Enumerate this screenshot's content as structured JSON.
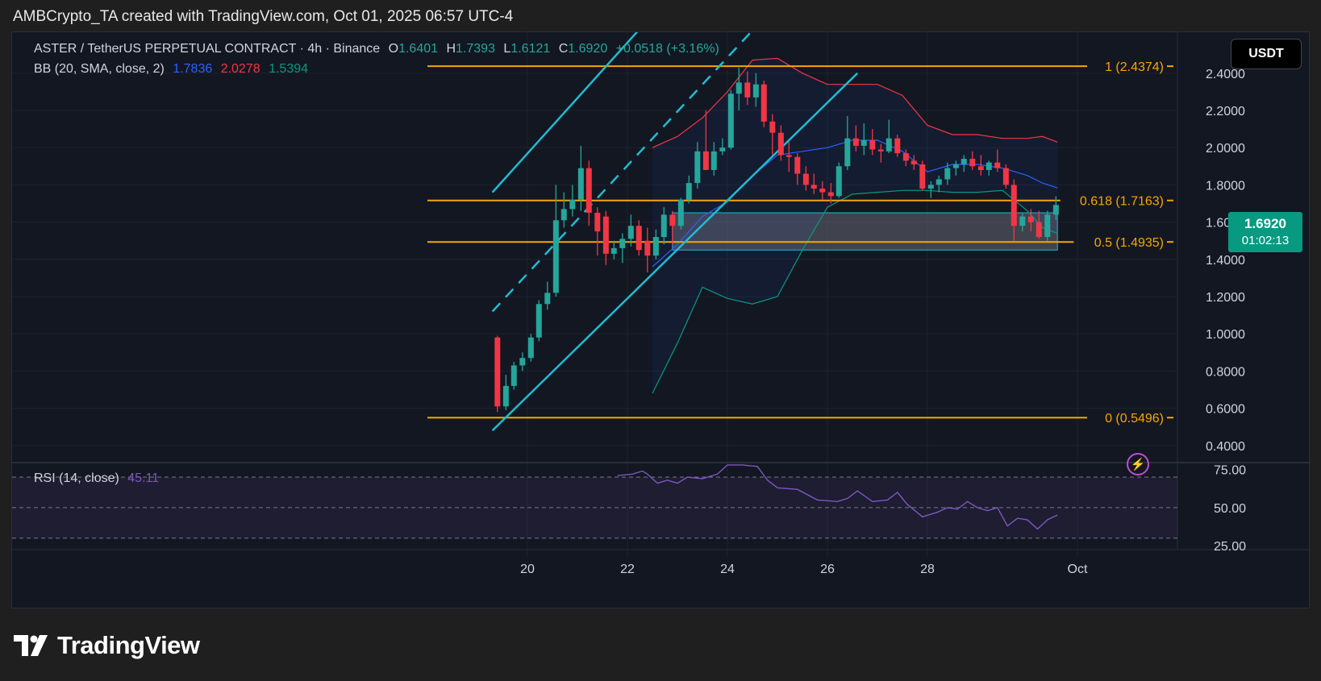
{
  "header": {
    "text": "AMBCrypto_TA created with TradingView.com, Oct 01, 2025 06:57 UTC-4"
  },
  "legend": {
    "symbol": "ASTER / TetherUS PERPETUAL CONTRACT · 4h · Binance",
    "open_label": "O",
    "open": "1.6401",
    "high_label": "H",
    "high": "1.7393",
    "low_label": "L",
    "low": "1.6121",
    "close_label": "C",
    "close": "1.6920",
    "change": "+0.0518 (+3.16%)",
    "bb_label": "BB (20, SMA, close, 2)",
    "bb_basis": "1.7836",
    "bb_upper": "2.0278",
    "bb_lower": "1.5394"
  },
  "rsi_legend": {
    "label": "RSI (14, close)",
    "value": "45.11"
  },
  "currency_button": "USDT",
  "price_tag": {
    "price": "1.6920",
    "countdown": "01:02:13"
  },
  "logo_text": "TradingView",
  "colors": {
    "up": "#26a69a",
    "down": "#f23645",
    "fib": "#f7a600",
    "channel": "#1fbcd2",
    "bb_basis": "#2962ff",
    "bb_upper": "#f23645",
    "bb_lower": "#089981",
    "rsi": "#7e57c2"
  },
  "chart_data": [
    {
      "type": "candlestick",
      "title": "ASTER / TetherUS PERPETUAL CONTRACT",
      "interval": "4h",
      "x_tick_labels": [
        "20",
        "22",
        "24",
        "26",
        "28",
        "Oct"
      ],
      "x_tick_days": [
        20,
        22,
        24,
        26,
        28,
        31
      ],
      "y_tick_labels": [
        "2.4000",
        "2.2000",
        "2.0000",
        "1.8000",
        "1.6000",
        "1.4000",
        "1.2000",
        "1.0000",
        "0.8000",
        "0.6000",
        "0.4000"
      ],
      "y_ticks": [
        2.4,
        2.2,
        2.0,
        1.8,
        1.6,
        1.4,
        1.2,
        1.0,
        0.8,
        0.6,
        0.4
      ],
      "ylim": [
        0.36,
        2.62
      ],
      "fib_levels": [
        {
          "label": "1 (2.4374)",
          "value": 2.4374
        },
        {
          "label": "0.618 (1.7163)",
          "value": 1.7163
        },
        {
          "label": "0.5 (1.4935)",
          "value": 1.4935
        },
        {
          "label": "0 (0.5496)",
          "value": 0.5496
        }
      ],
      "candles": [
        {
          "d": 19.4,
          "o": 0.98,
          "h": 0.99,
          "l": 0.58,
          "c": 0.61
        },
        {
          "d": 19.57,
          "o": 0.61,
          "h": 0.78,
          "l": 0.59,
          "c": 0.72
        },
        {
          "d": 19.73,
          "o": 0.72,
          "h": 0.85,
          "l": 0.7,
          "c": 0.83
        },
        {
          "d": 19.9,
          "o": 0.83,
          "h": 0.9,
          "l": 0.8,
          "c": 0.87
        },
        {
          "d": 20.07,
          "o": 0.87,
          "h": 1.0,
          "l": 0.85,
          "c": 0.98
        },
        {
          "d": 20.23,
          "o": 0.98,
          "h": 1.18,
          "l": 0.96,
          "c": 1.16
        },
        {
          "d": 20.4,
          "o": 1.16,
          "h": 1.28,
          "l": 1.13,
          "c": 1.22
        },
        {
          "d": 20.57,
          "o": 1.22,
          "h": 1.8,
          "l": 1.2,
          "c": 1.61
        },
        {
          "d": 20.73,
          "o": 1.61,
          "h": 1.76,
          "l": 1.57,
          "c": 1.67
        },
        {
          "d": 20.9,
          "o": 1.67,
          "h": 1.8,
          "l": 1.63,
          "c": 1.72
        },
        {
          "d": 21.07,
          "o": 1.72,
          "h": 2.01,
          "l": 1.66,
          "c": 1.89
        },
        {
          "d": 21.23,
          "o": 1.89,
          "h": 1.93,
          "l": 1.58,
          "c": 1.65
        },
        {
          "d": 21.4,
          "o": 1.65,
          "h": 1.68,
          "l": 1.42,
          "c": 1.55
        },
        {
          "d": 21.57,
          "o": 1.63,
          "h": 1.66,
          "l": 1.37,
          "c": 1.43
        },
        {
          "d": 21.73,
          "o": 1.43,
          "h": 1.5,
          "l": 1.4,
          "c": 1.46
        },
        {
          "d": 21.9,
          "o": 1.46,
          "h": 1.54,
          "l": 1.38,
          "c": 1.51
        },
        {
          "d": 22.07,
          "o": 1.51,
          "h": 1.64,
          "l": 1.47,
          "c": 1.58
        },
        {
          "d": 22.23,
          "o": 1.58,
          "h": 1.61,
          "l": 1.42,
          "c": 1.45
        },
        {
          "d": 22.4,
          "o": 1.5,
          "h": 1.57,
          "l": 1.33,
          "c": 1.42
        },
        {
          "d": 22.57,
          "o": 1.42,
          "h": 1.56,
          "l": 1.4,
          "c": 1.52
        },
        {
          "d": 22.73,
          "o": 1.52,
          "h": 1.68,
          "l": 1.48,
          "c": 1.64
        },
        {
          "d": 22.9,
          "o": 1.64,
          "h": 1.66,
          "l": 1.48,
          "c": 1.58
        },
        {
          "d": 23.07,
          "o": 1.58,
          "h": 1.73,
          "l": 1.56,
          "c": 1.72
        },
        {
          "d": 23.23,
          "o": 1.72,
          "h": 1.85,
          "l": 1.7,
          "c": 1.81
        },
        {
          "d": 23.4,
          "o": 1.81,
          "h": 2.03,
          "l": 1.78,
          "c": 1.98
        },
        {
          "d": 23.57,
          "o": 1.98,
          "h": 2.2,
          "l": 1.88,
          "c": 1.88
        },
        {
          "d": 23.73,
          "o": 1.88,
          "h": 2.03,
          "l": 1.85,
          "c": 1.98
        },
        {
          "d": 23.9,
          "o": 1.98,
          "h": 2.05,
          "l": 1.96,
          "c": 2.0
        },
        {
          "d": 24.07,
          "o": 2.0,
          "h": 2.31,
          "l": 1.99,
          "c": 2.29
        },
        {
          "d": 24.23,
          "o": 2.29,
          "h": 2.43,
          "l": 2.2,
          "c": 2.35
        },
        {
          "d": 24.4,
          "o": 2.35,
          "h": 2.41,
          "l": 2.23,
          "c": 2.27
        },
        {
          "d": 24.57,
          "o": 2.27,
          "h": 2.4,
          "l": 2.22,
          "c": 2.34
        },
        {
          "d": 24.73,
          "o": 2.34,
          "h": 2.36,
          "l": 2.11,
          "c": 2.14
        },
        {
          "d": 24.9,
          "o": 2.14,
          "h": 2.18,
          "l": 1.96,
          "c": 2.08
        },
        {
          "d": 25.07,
          "o": 2.08,
          "h": 2.12,
          "l": 1.93,
          "c": 1.96
        },
        {
          "d": 25.23,
          "o": 1.96,
          "h": 2.03,
          "l": 1.87,
          "c": 1.95
        },
        {
          "d": 25.4,
          "o": 1.95,
          "h": 1.97,
          "l": 1.8,
          "c": 1.86
        },
        {
          "d": 25.57,
          "o": 1.86,
          "h": 1.9,
          "l": 1.77,
          "c": 1.8
        },
        {
          "d": 25.73,
          "o": 1.8,
          "h": 1.86,
          "l": 1.75,
          "c": 1.78
        },
        {
          "d": 25.9,
          "o": 1.78,
          "h": 1.82,
          "l": 1.72,
          "c": 1.76
        },
        {
          "d": 26.07,
          "o": 1.76,
          "h": 1.81,
          "l": 1.7,
          "c": 1.74
        },
        {
          "d": 26.23,
          "o": 1.74,
          "h": 1.92,
          "l": 1.73,
          "c": 1.9
        },
        {
          "d": 26.4,
          "o": 1.9,
          "h": 2.17,
          "l": 1.88,
          "c": 2.05
        },
        {
          "d": 26.57,
          "o": 2.05,
          "h": 2.12,
          "l": 1.98,
          "c": 2.01
        },
        {
          "d": 26.73,
          "o": 2.01,
          "h": 2.13,
          "l": 1.96,
          "c": 2.04
        },
        {
          "d": 26.9,
          "o": 2.04,
          "h": 2.1,
          "l": 1.96,
          "c": 1.99
        },
        {
          "d": 27.07,
          "o": 1.99,
          "h": 2.02,
          "l": 1.92,
          "c": 1.98
        },
        {
          "d": 27.23,
          "o": 1.98,
          "h": 2.15,
          "l": 1.97,
          "c": 2.05
        },
        {
          "d": 27.4,
          "o": 2.05,
          "h": 2.07,
          "l": 1.95,
          "c": 1.97
        },
        {
          "d": 27.57,
          "o": 1.97,
          "h": 1.99,
          "l": 1.9,
          "c": 1.93
        },
        {
          "d": 27.73,
          "o": 1.93,
          "h": 1.96,
          "l": 1.88,
          "c": 1.91
        },
        {
          "d": 27.9,
          "o": 1.91,
          "h": 1.93,
          "l": 1.77,
          "c": 1.78
        },
        {
          "d": 28.07,
          "o": 1.78,
          "h": 1.82,
          "l": 1.73,
          "c": 1.8
        },
        {
          "d": 28.23,
          "o": 1.8,
          "h": 1.85,
          "l": 1.76,
          "c": 1.83
        },
        {
          "d": 28.4,
          "o": 1.83,
          "h": 1.92,
          "l": 1.8,
          "c": 1.89
        },
        {
          "d": 28.57,
          "o": 1.89,
          "h": 1.93,
          "l": 1.85,
          "c": 1.91
        },
        {
          "d": 28.73,
          "o": 1.91,
          "h": 1.96,
          "l": 1.87,
          "c": 1.94
        },
        {
          "d": 28.9,
          "o": 1.94,
          "h": 1.98,
          "l": 1.88,
          "c": 1.9
        },
        {
          "d": 29.07,
          "o": 1.9,
          "h": 1.96,
          "l": 1.85,
          "c": 1.88
        },
        {
          "d": 29.23,
          "o": 1.88,
          "h": 1.93,
          "l": 1.85,
          "c": 1.92
        },
        {
          "d": 29.4,
          "o": 1.92,
          "h": 1.99,
          "l": 1.87,
          "c": 1.89
        },
        {
          "d": 29.57,
          "o": 1.89,
          "h": 1.91,
          "l": 1.78,
          "c": 1.8
        },
        {
          "d": 29.73,
          "o": 1.8,
          "h": 1.83,
          "l": 1.5,
          "c": 1.58
        },
        {
          "d": 29.9,
          "o": 1.58,
          "h": 1.65,
          "l": 1.55,
          "c": 1.63
        },
        {
          "d": 30.07,
          "o": 1.63,
          "h": 1.67,
          "l": 1.55,
          "c": 1.6
        },
        {
          "d": 30.23,
          "o": 1.6,
          "h": 1.66,
          "l": 1.51,
          "c": 1.52
        },
        {
          "d": 30.4,
          "o": 1.52,
          "h": 1.66,
          "l": 1.5,
          "c": 1.64
        },
        {
          "d": 30.57,
          "o": 1.6401,
          "h": 1.7393,
          "l": 1.6121,
          "c": 1.692
        }
      ],
      "bb_upper": [
        [
          22.5,
          2.0
        ],
        [
          23.0,
          2.06
        ],
        [
          23.5,
          2.16
        ],
        [
          24.0,
          2.3
        ],
        [
          24.5,
          2.47
        ],
        [
          25.0,
          2.48
        ],
        [
          25.5,
          2.4
        ],
        [
          26.0,
          2.34
        ],
        [
          26.5,
          2.34
        ],
        [
          27.0,
          2.34
        ],
        [
          27.5,
          2.28
        ],
        [
          28.0,
          2.12
        ],
        [
          28.5,
          2.07
        ],
        [
          29.0,
          2.07
        ],
        [
          29.5,
          2.05
        ],
        [
          30.0,
          2.05
        ],
        [
          30.3,
          2.06
        ],
        [
          30.6,
          2.03
        ]
      ],
      "bb_basis": [
        [
          22.5,
          1.36
        ],
        [
          23.0,
          1.48
        ],
        [
          23.5,
          1.63
        ],
        [
          24.0,
          1.71
        ],
        [
          24.5,
          1.85
        ],
        [
          25.0,
          1.96
        ],
        [
          25.5,
          1.98
        ],
        [
          26.0,
          2.0
        ],
        [
          26.5,
          2.04
        ],
        [
          27.0,
          2.04
        ],
        [
          27.5,
          1.98
        ],
        [
          28.0,
          1.87
        ],
        [
          28.5,
          1.91
        ],
        [
          29.0,
          1.91
        ],
        [
          29.5,
          1.89
        ],
        [
          30.0,
          1.85
        ],
        [
          30.3,
          1.81
        ],
        [
          30.6,
          1.7836
        ]
      ],
      "bb_lower": [
        [
          22.5,
          0.68
        ],
        [
          23.0,
          0.95
        ],
        [
          23.5,
          1.25
        ],
        [
          24.0,
          1.19
        ],
        [
          24.5,
          1.16
        ],
        [
          25.0,
          1.2
        ],
        [
          25.5,
          1.45
        ],
        [
          26.0,
          1.68
        ],
        [
          26.5,
          1.75
        ],
        [
          27.0,
          1.76
        ],
        [
          27.5,
          1.77
        ],
        [
          28.0,
          1.77
        ],
        [
          28.5,
          1.76
        ],
        [
          29.0,
          1.76
        ],
        [
          29.5,
          1.77
        ],
        [
          30.0,
          1.66
        ],
        [
          30.3,
          1.57
        ],
        [
          30.6,
          1.5394
        ]
      ],
      "channel": {
        "upper": [
          [
            19.3,
            1.76
          ],
          [
            24.0,
            3.16
          ]
        ],
        "lower": [
          [
            19.3,
            0.48
          ],
          [
            26.6,
            2.4
          ]
        ],
        "midline": [
          [
            19.3,
            1.12
          ],
          [
            25.5,
            2.92
          ]
        ]
      },
      "zone": {
        "from": 22.9,
        "to": 30.6,
        "top": 1.65,
        "bottom": 1.45
      }
    },
    {
      "type": "line",
      "title": "RSI (14, close)",
      "y_tick_labels": [
        "75.00",
        "50.00",
        "25.00"
      ],
      "y_ticks": [
        75,
        50,
        25
      ],
      "ylim": [
        23,
        79
      ],
      "bands": [
        70,
        50,
        30
      ],
      "points": [
        [
          21.8,
          71
        ],
        [
          22.1,
          72
        ],
        [
          22.3,
          74
        ],
        [
          22.4,
          72
        ],
        [
          22.6,
          66
        ],
        [
          22.8,
          68
        ],
        [
          23.0,
          66
        ],
        [
          23.2,
          70
        ],
        [
          23.5,
          69
        ],
        [
          23.8,
          72
        ],
        [
          24.0,
          78
        ],
        [
          24.3,
          78
        ],
        [
          24.6,
          77
        ],
        [
          24.8,
          68
        ],
        [
          25.0,
          63
        ],
        [
          25.4,
          62
        ],
        [
          25.8,
          55
        ],
        [
          26.2,
          54
        ],
        [
          26.4,
          56
        ],
        [
          26.6,
          61
        ],
        [
          26.9,
          54
        ],
        [
          27.2,
          55
        ],
        [
          27.4,
          60
        ],
        [
          27.6,
          52
        ],
        [
          27.9,
          44
        ],
        [
          28.2,
          47
        ],
        [
          28.4,
          50
        ],
        [
          28.6,
          49
        ],
        [
          28.8,
          54
        ],
        [
          29.0,
          50
        ],
        [
          29.2,
          48
        ],
        [
          29.4,
          50
        ],
        [
          29.6,
          38
        ],
        [
          29.8,
          43
        ],
        [
          30.0,
          42
        ],
        [
          30.2,
          36
        ],
        [
          30.4,
          42
        ],
        [
          30.6,
          45.11
        ]
      ]
    }
  ]
}
